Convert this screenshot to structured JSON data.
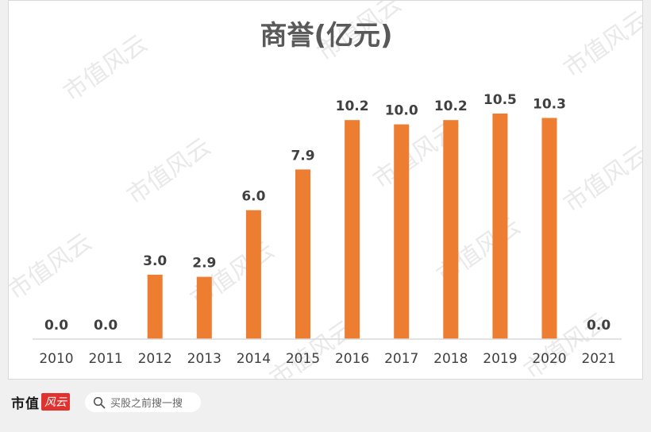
{
  "chart_data": {
    "type": "bar",
    "title": "商誉(亿元)",
    "categories": [
      "2010",
      "2011",
      "2012",
      "2013",
      "2014",
      "2015",
      "2016",
      "2017",
      "2018",
      "2019",
      "2020",
      "2021"
    ],
    "values": [
      0.0,
      0.0,
      3.0,
      2.9,
      6.0,
      7.9,
      10.2,
      10.0,
      10.2,
      10.5,
      10.3,
      0.0
    ],
    "data_labels": [
      "0.0",
      "0.0",
      "3.0",
      "2.9",
      "6.0",
      "7.9",
      "10.2",
      "10.0",
      "10.2",
      "10.5",
      "10.3",
      "0.0"
    ],
    "xlabel": "",
    "ylabel": "",
    "ylim": [
      0,
      11.5
    ],
    "grid": false,
    "legend": "none",
    "bar_color": "#ed7d31"
  },
  "watermark": "市值风云",
  "footer": {
    "brand_main": "市值",
    "brand_accent": "风云",
    "search_placeholder": "买股之前搜一搜"
  },
  "colors": {
    "bar": "#ed7d31",
    "title": "#595959",
    "label": "#404040",
    "axis": "#d9d9d9"
  }
}
